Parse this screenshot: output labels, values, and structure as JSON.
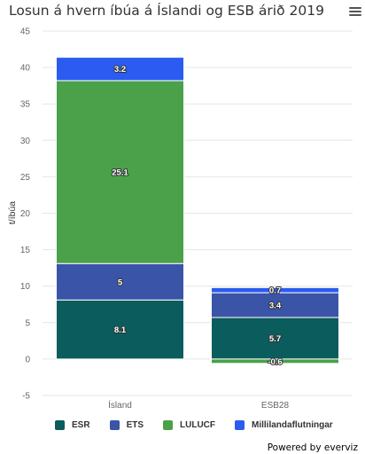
{
  "title": "Losun á hvern íbúa á Íslandi og ESB árið 2019",
  "credit": "Powered by everviz",
  "menu_icon": "hamburger-menu-icon",
  "chart_data": {
    "type": "bar",
    "stacked": true,
    "categories": [
      "Ísland",
      "ESB28"
    ],
    "ylabel": "t/íbúa",
    "xlabel": "",
    "ylim": [
      -5,
      45
    ],
    "yticks": [
      -5,
      0,
      5,
      10,
      15,
      20,
      25,
      30,
      35,
      40,
      45
    ],
    "grid": true,
    "legend_position": "bottom",
    "series": [
      {
        "name": "ESR",
        "color": "#0b5c5c",
        "values": [
          8.1,
          5.7
        ]
      },
      {
        "name": "ETS",
        "color": "#3a54a8",
        "values": [
          5,
          3.4
        ]
      },
      {
        "name": "LULUCF",
        "color": "#4aa14a",
        "values": [
          25.1,
          -0.6
        ]
      },
      {
        "name": "Millilandaflutningar",
        "color": "#2b5bf0",
        "values": [
          3.2,
          0.7
        ]
      }
    ]
  }
}
